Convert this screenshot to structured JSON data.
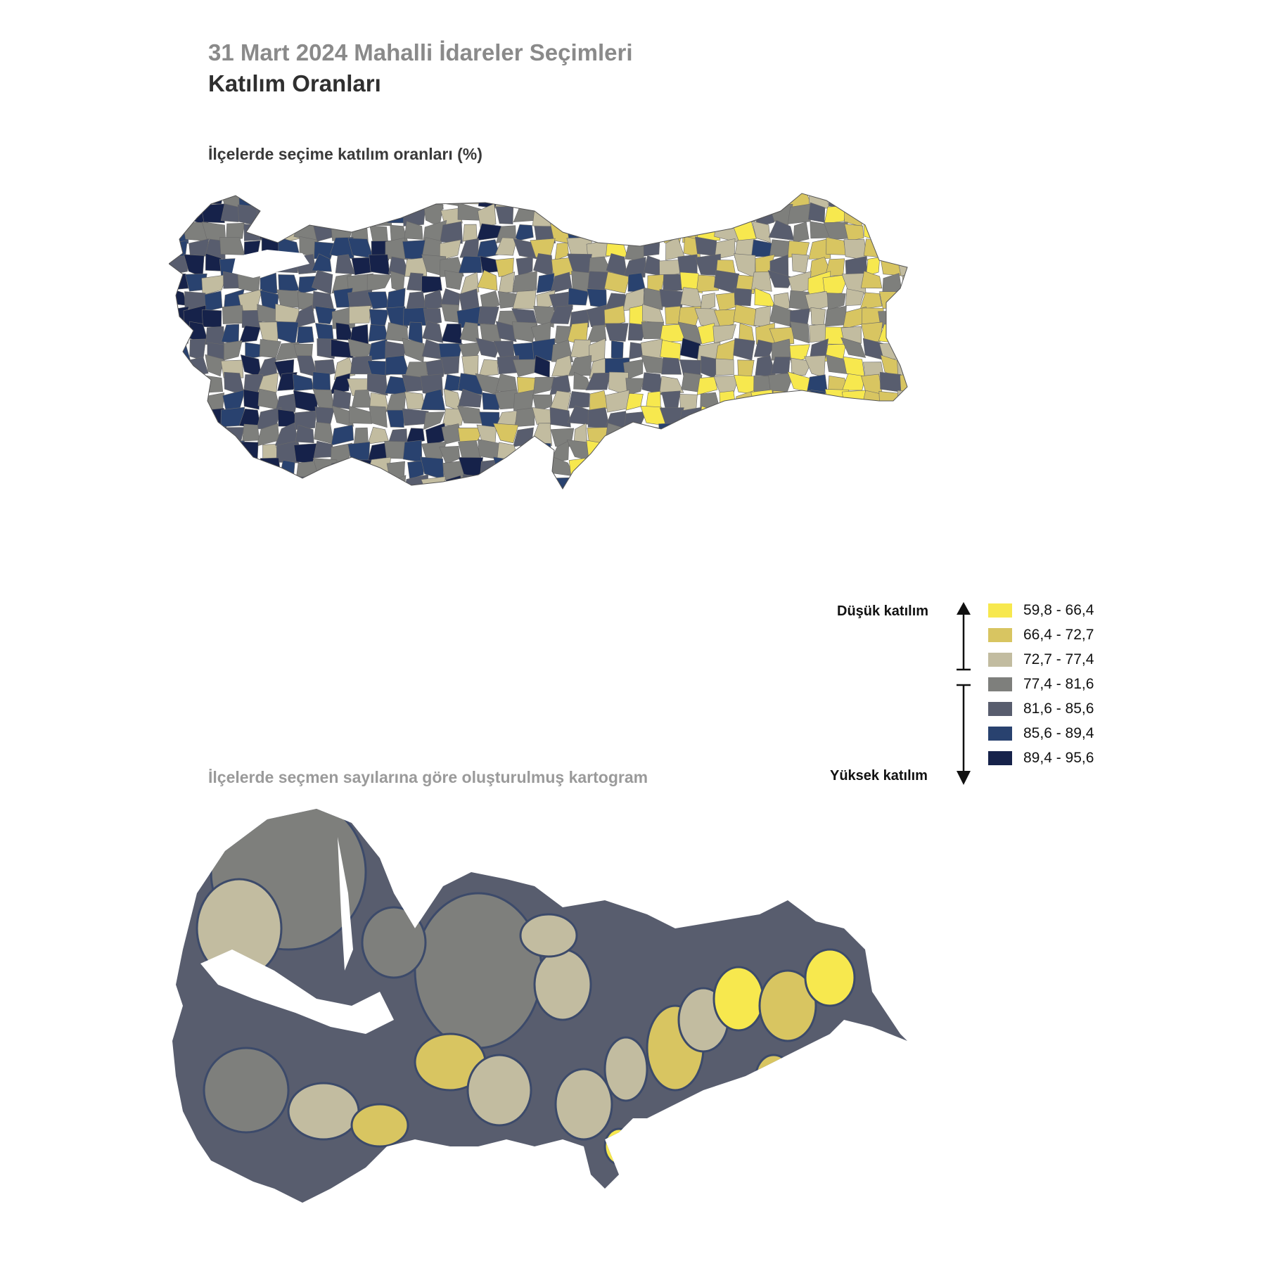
{
  "header": {
    "title": "31 Mart 2024 Mahalli İdareler Seçimleri",
    "subtitle": "Katılım Oranları"
  },
  "maps": {
    "choropleth_caption": "İlçelerde seçime katılım oranları (%)",
    "cartogram_caption": "İlçelerde seçmen sayılarına göre oluşturulmuş kartogram"
  },
  "legend": {
    "low_label": "Düşük katılım",
    "high_label": "Yüksek katılım",
    "classes": [
      {
        "range": "59,8 - 66,4",
        "color": "#f7e84e"
      },
      {
        "range": "66,4 - 72,7",
        "color": "#d8c561"
      },
      {
        "range": "72,7 - 77,4",
        "color": "#c2bca0"
      },
      {
        "range": "77,4 - 81,6",
        "color": "#7e7f7c"
      },
      {
        "range": "81,6 - 85,6",
        "color": "#585d6e"
      },
      {
        "range": "85,6 - 89,4",
        "color": "#29426f"
      },
      {
        "range": "89,4 - 95,6",
        "color": "#16224a"
      }
    ]
  }
}
